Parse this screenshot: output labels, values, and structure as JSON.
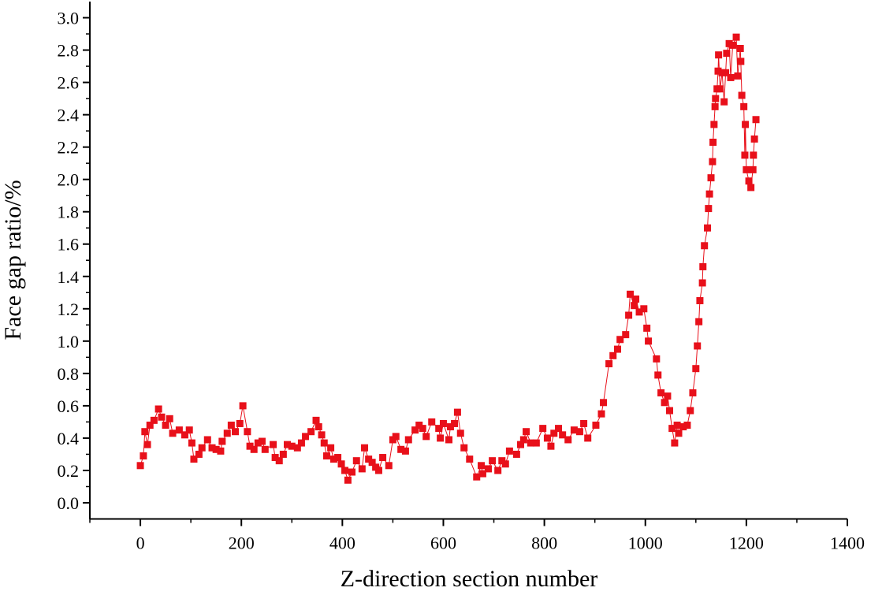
{
  "chart_data": {
    "type": "line",
    "x_label": "Z-direction section number",
    "y_label": "Face gap ratio/%",
    "xlim": [
      -100,
      1400
    ],
    "xticks": [
      0,
      200,
      400,
      600,
      800,
      1000,
      1200,
      1400
    ],
    "ylim": [
      -0.1,
      3.1
    ],
    "yticks": [
      {
        "value": 0,
        "label": "0.0"
      },
      0.2,
      0.4,
      0.6,
      0.8,
      {
        "value": 1,
        "label": "1.0"
      },
      1.2,
      1.4,
      1.6,
      1.8,
      {
        "value": 2,
        "label": "2.0"
      },
      2.2,
      2.4,
      2.6,
      2.8,
      {
        "value": 3,
        "label": "3.0"
      }
    ],
    "x": [
      0,
      6,
      9,
      14,
      19,
      27,
      36,
      42,
      50,
      58,
      64,
      77,
      88,
      97,
      102,
      106,
      116,
      122,
      133,
      142,
      150,
      159,
      162,
      172,
      180,
      188,
      197,
      203,
      212,
      217,
      225,
      233,
      241,
      247,
      263,
      267,
      275,
      283,
      291,
      300,
      311,
      319,
      327,
      338,
      348,
      353,
      359,
      364,
      369,
      377,
      383,
      391,
      398,
      405,
      411,
      419,
      428,
      439,
      444,
      452,
      459,
      466,
      472,
      480,
      492,
      500,
      506,
      516,
      525,
      531,
      544,
      552,
      559,
      566,
      577,
      591,
      594,
      600,
      611,
      614,
      622,
      628,
      634,
      641,
      652,
      666,
      675,
      678,
      689,
      697,
      708,
      716,
      723,
      731,
      745,
      753,
      759,
      764,
      773,
      784,
      797,
      806,
      813,
      819,
      828,
      836,
      847,
      859,
      870,
      878,
      886,
      902,
      913,
      917,
      928,
      936,
      945,
      950,
      961,
      967,
      970,
      978,
      981,
      988,
      997,
      1003,
      1006,
      1022,
      1025,
      1031,
      1038,
      1044,
      1048,
      1053,
      1058,
      1063,
      1066,
      1075,
      1083,
      1089,
      1094,
      1100,
      1103,
      1106,
      1108,
      1113,
      1114,
      1117,
      1123,
      1125,
      1127,
      1130,
      1133,
      1134,
      1136,
      1138,
      1139,
      1142,
      1144,
      1145,
      1148,
      1152,
      1156,
      1159,
      1161,
      1166,
      1169,
      1173,
      1180,
      1183,
      1188,
      1189,
      1191,
      1195,
      1197,
      1198,
      1200,
      1205,
      1209,
      1213,
      1214,
      1216,
      1219
    ],
    "series": [
      {
        "color": "#e8101a",
        "values": [
          0.23,
          0.29,
          0.44,
          0.36,
          0.48,
          0.51,
          0.58,
          0.53,
          0.48,
          0.52,
          0.43,
          0.45,
          0.42,
          0.45,
          0.37,
          0.27,
          0.3,
          0.34,
          0.39,
          0.34,
          0.33,
          0.32,
          0.38,
          0.43,
          0.48,
          0.44,
          0.49,
          0.6,
          0.44,
          0.35,
          0.33,
          0.37,
          0.38,
          0.33,
          0.36,
          0.28,
          0.26,
          0.3,
          0.36,
          0.35,
          0.34,
          0.37,
          0.41,
          0.44,
          0.51,
          0.47,
          0.42,
          0.37,
          0.29,
          0.34,
          0.27,
          0.28,
          0.24,
          0.2,
          0.14,
          0.19,
          0.26,
          0.21,
          0.34,
          0.27,
          0.25,
          0.22,
          0.2,
          0.28,
          0.23,
          0.39,
          0.41,
          0.33,
          0.32,
          0.39,
          0.45,
          0.48,
          0.46,
          0.41,
          0.5,
          0.46,
          0.4,
          0.49,
          0.39,
          0.47,
          0.49,
          0.56,
          0.43,
          0.34,
          0.27,
          0.16,
          0.23,
          0.18,
          0.21,
          0.26,
          0.2,
          0.26,
          0.24,
          0.32,
          0.3,
          0.36,
          0.39,
          0.44,
          0.37,
          0.37,
          0.46,
          0.4,
          0.35,
          0.43,
          0.46,
          0.42,
          0.39,
          0.45,
          0.44,
          0.49,
          0.4,
          0.48,
          0.55,
          0.62,
          0.86,
          0.91,
          0.95,
          1.01,
          1.04,
          1.16,
          1.29,
          1.22,
          1.26,
          1.18,
          1.2,
          1.08,
          1.0,
          0.89,
          0.79,
          0.68,
          0.62,
          0.66,
          0.57,
          0.46,
          0.37,
          0.48,
          0.43,
          0.47,
          0.48,
          0.57,
          0.68,
          0.83,
          0.97,
          1.12,
          1.25,
          1.36,
          1.46,
          1.59,
          1.7,
          1.82,
          1.91,
          2.01,
          2.11,
          2.23,
          2.34,
          2.45,
          2.5,
          2.56,
          2.67,
          2.77,
          2.56,
          2.66,
          2.48,
          2.66,
          2.78,
          2.84,
          2.63,
          2.83,
          2.88,
          2.64,
          2.81,
          2.73,
          2.52,
          2.45,
          2.15,
          2.34,
          2.06,
          1.99,
          1.95,
          2.06,
          2.15,
          2.25,
          2.37
        ]
      }
    ]
  }
}
